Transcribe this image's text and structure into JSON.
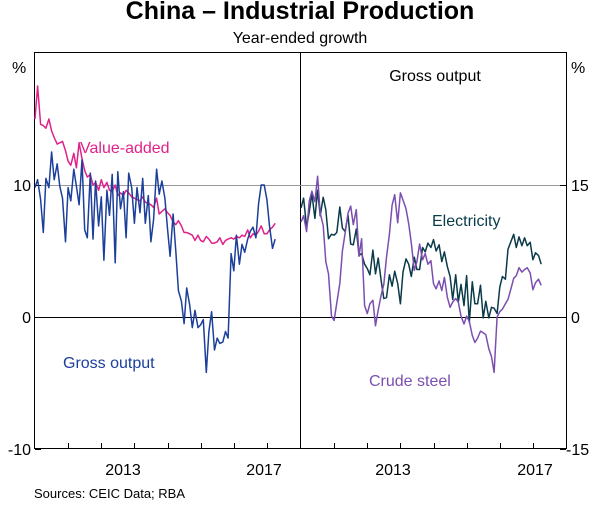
{
  "title": "China – Industrial Production",
  "subtitle": "Year-ended growth",
  "source": "Sources: CEIC Data; RBA",
  "colors": {
    "value_added": "#e0218a",
    "gross_output": "#1b3f9a",
    "electricity": "#0b3b4a",
    "crude_steel": "#7b4fb0",
    "grid": "#9a9a9a"
  },
  "chart_data": [
    {
      "type": "line",
      "panel": "left",
      "title": "",
      "axis_unit": "%",
      "ylim": [
        -10,
        20
      ],
      "yticks": [
        -10,
        0,
        10
      ],
      "ytick_labels": [
        "-10",
        "0",
        "10"
      ],
      "xlim": [
        2010.0,
        2018.0
      ],
      "xtick_labels": [
        "2013",
        "2017"
      ],
      "xtick_positions": [
        2013.5,
        2017.5
      ],
      "series": [
        {
          "name": "Value-added",
          "label": "Value-added",
          "color": "#e0218a",
          "x": [
            2010.0,
            2010.08,
            2010.17,
            2010.25,
            2010.33,
            2010.42,
            2010.5,
            2010.58,
            2010.67,
            2010.75,
            2010.83,
            2010.92,
            2011.0,
            2011.08,
            2011.17,
            2011.25,
            2011.33,
            2011.42,
            2011.5,
            2011.58,
            2011.67,
            2011.75,
            2011.83,
            2011.92,
            2012.0,
            2012.08,
            2012.17,
            2012.25,
            2012.33,
            2012.42,
            2012.5,
            2012.58,
            2012.67,
            2012.75,
            2012.83,
            2012.92,
            2013.0,
            2013.08,
            2013.17,
            2013.25,
            2013.33,
            2013.42,
            2013.5,
            2013.58,
            2013.67,
            2013.75,
            2013.83,
            2013.92,
            2014.0,
            2014.08,
            2014.17,
            2014.25,
            2014.33,
            2014.42,
            2014.5,
            2014.58,
            2014.67,
            2014.75,
            2014.83,
            2014.92,
            2015.0,
            2015.08,
            2015.17,
            2015.25,
            2015.33,
            2015.42,
            2015.5,
            2015.58,
            2015.67,
            2015.75,
            2015.83,
            2015.92,
            2016.0,
            2016.08,
            2016.17,
            2016.25,
            2016.33,
            2016.42,
            2016.5,
            2016.58,
            2016.67,
            2016.75,
            2016.83,
            2016.92,
            2017.0,
            2017.08,
            2017.17,
            2017.25
          ],
          "values": [
            15.0,
            17.5,
            14.6,
            14.5,
            14.3,
            15.0,
            14.1,
            13.6,
            13.1,
            13.2,
            13.3,
            12.6,
            11.8,
            11.5,
            12.4,
            11.3,
            13.2,
            12.0,
            11.1,
            10.6,
            10.8,
            10.0,
            10.2,
            9.6,
            10.4,
            9.8,
            10.2,
            9.6,
            9.5,
            10.0,
            9.2,
            9.4,
            9.2,
            9.6,
            9.4,
            9.1,
            9.0,
            8.9,
            8.8,
            9.1,
            8.7,
            8.6,
            8.5,
            8.3,
            9.0,
            7.8,
            8.0,
            8.2,
            7.9,
            7.7,
            7.2,
            7.0,
            7.3,
            6.9,
            6.4,
            6.4,
            6.3,
            6.2,
            5.8,
            6.2,
            5.8,
            5.7,
            6.1,
            5.9,
            5.6,
            5.6,
            5.7,
            6.0,
            5.5,
            5.8,
            5.9,
            6.0,
            5.9,
            6.1,
            6.0,
            6.2,
            6.1,
            6.6,
            6.0,
            6.3,
            6.2,
            6.5,
            6.9,
            6.3,
            6.3,
            6.6,
            6.8,
            7.1
          ]
        },
        {
          "name": "Gross output",
          "label": "Gross output",
          "color": "#1b3f9a",
          "x": [
            2010.0,
            2010.08,
            2010.17,
            2010.25,
            2010.33,
            2010.42,
            2010.5,
            2010.58,
            2010.67,
            2010.75,
            2010.83,
            2010.92,
            2011.0,
            2011.08,
            2011.17,
            2011.25,
            2011.33,
            2011.42,
            2011.5,
            2011.58,
            2011.67,
            2011.75,
            2011.83,
            2011.92,
            2012.0,
            2012.08,
            2012.17,
            2012.25,
            2012.33,
            2012.42,
            2012.5,
            2012.58,
            2012.67,
            2012.75,
            2012.83,
            2012.92,
            2013.0,
            2013.08,
            2013.17,
            2013.25,
            2013.33,
            2013.42,
            2013.5,
            2013.58,
            2013.67,
            2013.75,
            2013.83,
            2013.92,
            2014.0,
            2014.08,
            2014.17,
            2014.25,
            2014.33,
            2014.42,
            2014.5,
            2014.58,
            2014.67,
            2014.75,
            2014.83,
            2014.92,
            2015.0,
            2015.08,
            2015.17,
            2015.25,
            2015.33,
            2015.42,
            2015.5,
            2015.58,
            2015.67,
            2015.75,
            2015.83,
            2015.92,
            2016.0,
            2016.08,
            2016.17,
            2016.25,
            2016.33,
            2016.42,
            2016.5,
            2016.58,
            2016.67,
            2016.75,
            2016.83,
            2016.92,
            2017.0,
            2017.08,
            2017.17,
            2017.25
          ],
          "values": [
            9.8,
            10.4,
            8.9,
            6.4,
            10.5,
            9.8,
            12.5,
            10.4,
            11.6,
            9.9,
            9.0,
            5.7,
            9.8,
            8.8,
            11.2,
            9.9,
            8.5,
            11.9,
            6.6,
            6.0,
            10.9,
            5.9,
            10.3,
            6.9,
            9.1,
            4.3,
            9.6,
            7.7,
            10.8,
            4.1,
            11.0,
            8.2,
            9.5,
            6.0,
            10.9,
            9.8,
            7.1,
            9.8,
            7.9,
            10.5,
            7.1,
            9.2,
            5.7,
            7.4,
            11.2,
            9.3,
            10.3,
            9.0,
            6.7,
            4.6,
            7.8,
            5.0,
            2.0,
            1.2,
            -0.5,
            2.2,
            0.9,
            -0.8,
            0.5,
            -0.8,
            -0.6,
            -0.2,
            -4.2,
            -1.1,
            0.4,
            -2.5,
            -1.6,
            -2.0,
            -1.9,
            -1.1,
            -1.6,
            4.8,
            3.5,
            6.2,
            4.0,
            5.5,
            4.9,
            5.9,
            6.5,
            6.8,
            6.0,
            8.6,
            10.0,
            10.0,
            8.9,
            6.9,
            5.2,
            5.9
          ]
        }
      ],
      "annotations": [
        "Value-added",
        "Gross output"
      ]
    },
    {
      "type": "line",
      "panel": "right",
      "title": "Gross output",
      "axis_unit": "%",
      "ylim": [
        -15,
        30
      ],
      "yticks": [
        -15,
        0,
        15
      ],
      "ytick_labels": [
        "-15",
        "0",
        "15"
      ],
      "xlim": [
        2010.0,
        2018.0
      ],
      "xtick_labels": [
        "2013",
        "2017"
      ],
      "xtick_positions": [
        2013.5,
        2017.5
      ],
      "series": [
        {
          "name": "Electricity",
          "label": "Electricity",
          "color": "#0b3b4a",
          "x": [
            2010.0,
            2010.08,
            2010.17,
            2010.25,
            2010.33,
            2010.42,
            2010.5,
            2010.58,
            2010.67,
            2010.75,
            2010.83,
            2010.92,
            2011.0,
            2011.08,
            2011.17,
            2011.25,
            2011.33,
            2011.42,
            2011.5,
            2011.58,
            2011.67,
            2011.75,
            2011.83,
            2011.92,
            2012.0,
            2012.08,
            2012.17,
            2012.25,
            2012.33,
            2012.42,
            2012.5,
            2012.58,
            2012.67,
            2012.75,
            2012.83,
            2012.92,
            2013.0,
            2013.08,
            2013.17,
            2013.25,
            2013.33,
            2013.42,
            2013.5,
            2013.58,
            2013.67,
            2013.75,
            2013.83,
            2013.92,
            2014.0,
            2014.08,
            2014.17,
            2014.25,
            2014.33,
            2014.42,
            2014.5,
            2014.58,
            2014.67,
            2014.75,
            2014.83,
            2014.92,
            2015.0,
            2015.08,
            2015.17,
            2015.25,
            2015.33,
            2015.42,
            2015.5,
            2015.58,
            2015.67,
            2015.75,
            2015.83,
            2015.92,
            2016.0,
            2016.08,
            2016.17,
            2016.25,
            2016.33,
            2016.42,
            2016.5,
            2016.58,
            2016.67,
            2016.75,
            2016.83,
            2016.92,
            2017.0,
            2017.08,
            2017.17,
            2017.25
          ],
          "values": [
            12.4,
            13.5,
            10.2,
            12.0,
            14.0,
            11.2,
            14.4,
            11.5,
            13.6,
            12.2,
            8.9,
            9.4,
            9.3,
            9.6,
            12.5,
            10.1,
            9.7,
            11.6,
            8.3,
            8.2,
            10.0,
            7.0,
            7.2,
            6.0,
            5.5,
            4.8,
            7.6,
            4.9,
            6.7,
            4.1,
            2.1,
            2.2,
            4.8,
            3.5,
            5.2,
            3.8,
            1.5,
            5.1,
            6.6,
            6.0,
            4.6,
            6.8,
            5.4,
            5.4,
            7.9,
            7.4,
            8.4,
            7.9,
            8.8,
            7.5,
            8.2,
            6.3,
            7.4,
            5.7,
            4.6,
            2.0,
            4.8,
            1.7,
            3.7,
            1.3,
            4.7,
            -0.6,
            4.0,
            1.5,
            1.5,
            3.6,
            -0.1,
            1.8,
            -0.1,
            1.1,
            1.0,
            0.4,
            3.4,
            4.6,
            4.3,
            7.7,
            8.5,
            9.4,
            7.9,
            9.1,
            8.1,
            9.0,
            8.1,
            8.5,
            6.5,
            7.3,
            7.0,
            6.0
          ]
        },
        {
          "name": "Crude steel",
          "label": "Crude steel",
          "color": "#7b4fb0",
          "x": [
            2010.0,
            2010.08,
            2010.17,
            2010.25,
            2010.33,
            2010.42,
            2010.5,
            2010.58,
            2010.67,
            2010.75,
            2010.83,
            2010.92,
            2011.0,
            2011.08,
            2011.17,
            2011.25,
            2011.33,
            2011.42,
            2011.5,
            2011.58,
            2011.67,
            2011.75,
            2011.83,
            2011.92,
            2012.0,
            2012.08,
            2012.17,
            2012.25,
            2012.33,
            2012.42,
            2012.5,
            2012.58,
            2012.67,
            2012.75,
            2012.83,
            2012.92,
            2013.0,
            2013.08,
            2013.17,
            2013.25,
            2013.33,
            2013.42,
            2013.5,
            2013.58,
            2013.67,
            2013.75,
            2013.83,
            2013.92,
            2014.0,
            2014.08,
            2014.17,
            2014.25,
            2014.33,
            2014.42,
            2014.5,
            2014.58,
            2014.67,
            2014.75,
            2014.83,
            2014.92,
            2015.0,
            2015.08,
            2015.17,
            2015.25,
            2015.33,
            2015.42,
            2015.5,
            2015.58,
            2015.67,
            2015.75,
            2015.83,
            2015.92,
            2016.0,
            2016.08,
            2016.17,
            2016.25,
            2016.33,
            2016.42,
            2016.5,
            2016.58,
            2016.67,
            2016.75,
            2016.83,
            2016.92,
            2017.0,
            2017.08,
            2017.17,
            2017.25
          ],
          "values": [
            10.8,
            11.5,
            9.7,
            13.2,
            14.3,
            13.1,
            16.0,
            11.8,
            10.4,
            6.3,
            4.9,
            0.1,
            -0.4,
            1.6,
            3.8,
            7.5,
            9.5,
            11.8,
            12.6,
            10.5,
            12.2,
            6.9,
            8.9,
            1.3,
            0.4,
            1.5,
            1.9,
            -1.0,
            0.8,
            2.5,
            3.7,
            6.8,
            9.4,
            12.7,
            13.9,
            10.7,
            14.1,
            13.3,
            12.3,
            10.6,
            8.4,
            5.3,
            6.3,
            8.3,
            6.5,
            7.2,
            6.0,
            6.4,
            3.8,
            3.2,
            4.1,
            3.0,
            4.5,
            2.2,
            1.1,
            1.7,
            2.1,
            1.7,
            0.1,
            -0.8,
            0.1,
            -0.5,
            -2.1,
            -2.9,
            -2.4,
            -1.6,
            -1.8,
            -2.0,
            -3.6,
            -4.5,
            -6.3,
            0.0,
            0.6,
            0.9,
            1.5,
            2.0,
            3.1,
            4.4,
            4.7,
            5.6,
            5.1,
            5.4,
            5.6,
            5.0,
            3.1,
            3.9,
            4.3,
            3.6
          ]
        }
      ],
      "annotations": [
        "Electricity",
        "Crude steel"
      ]
    }
  ]
}
